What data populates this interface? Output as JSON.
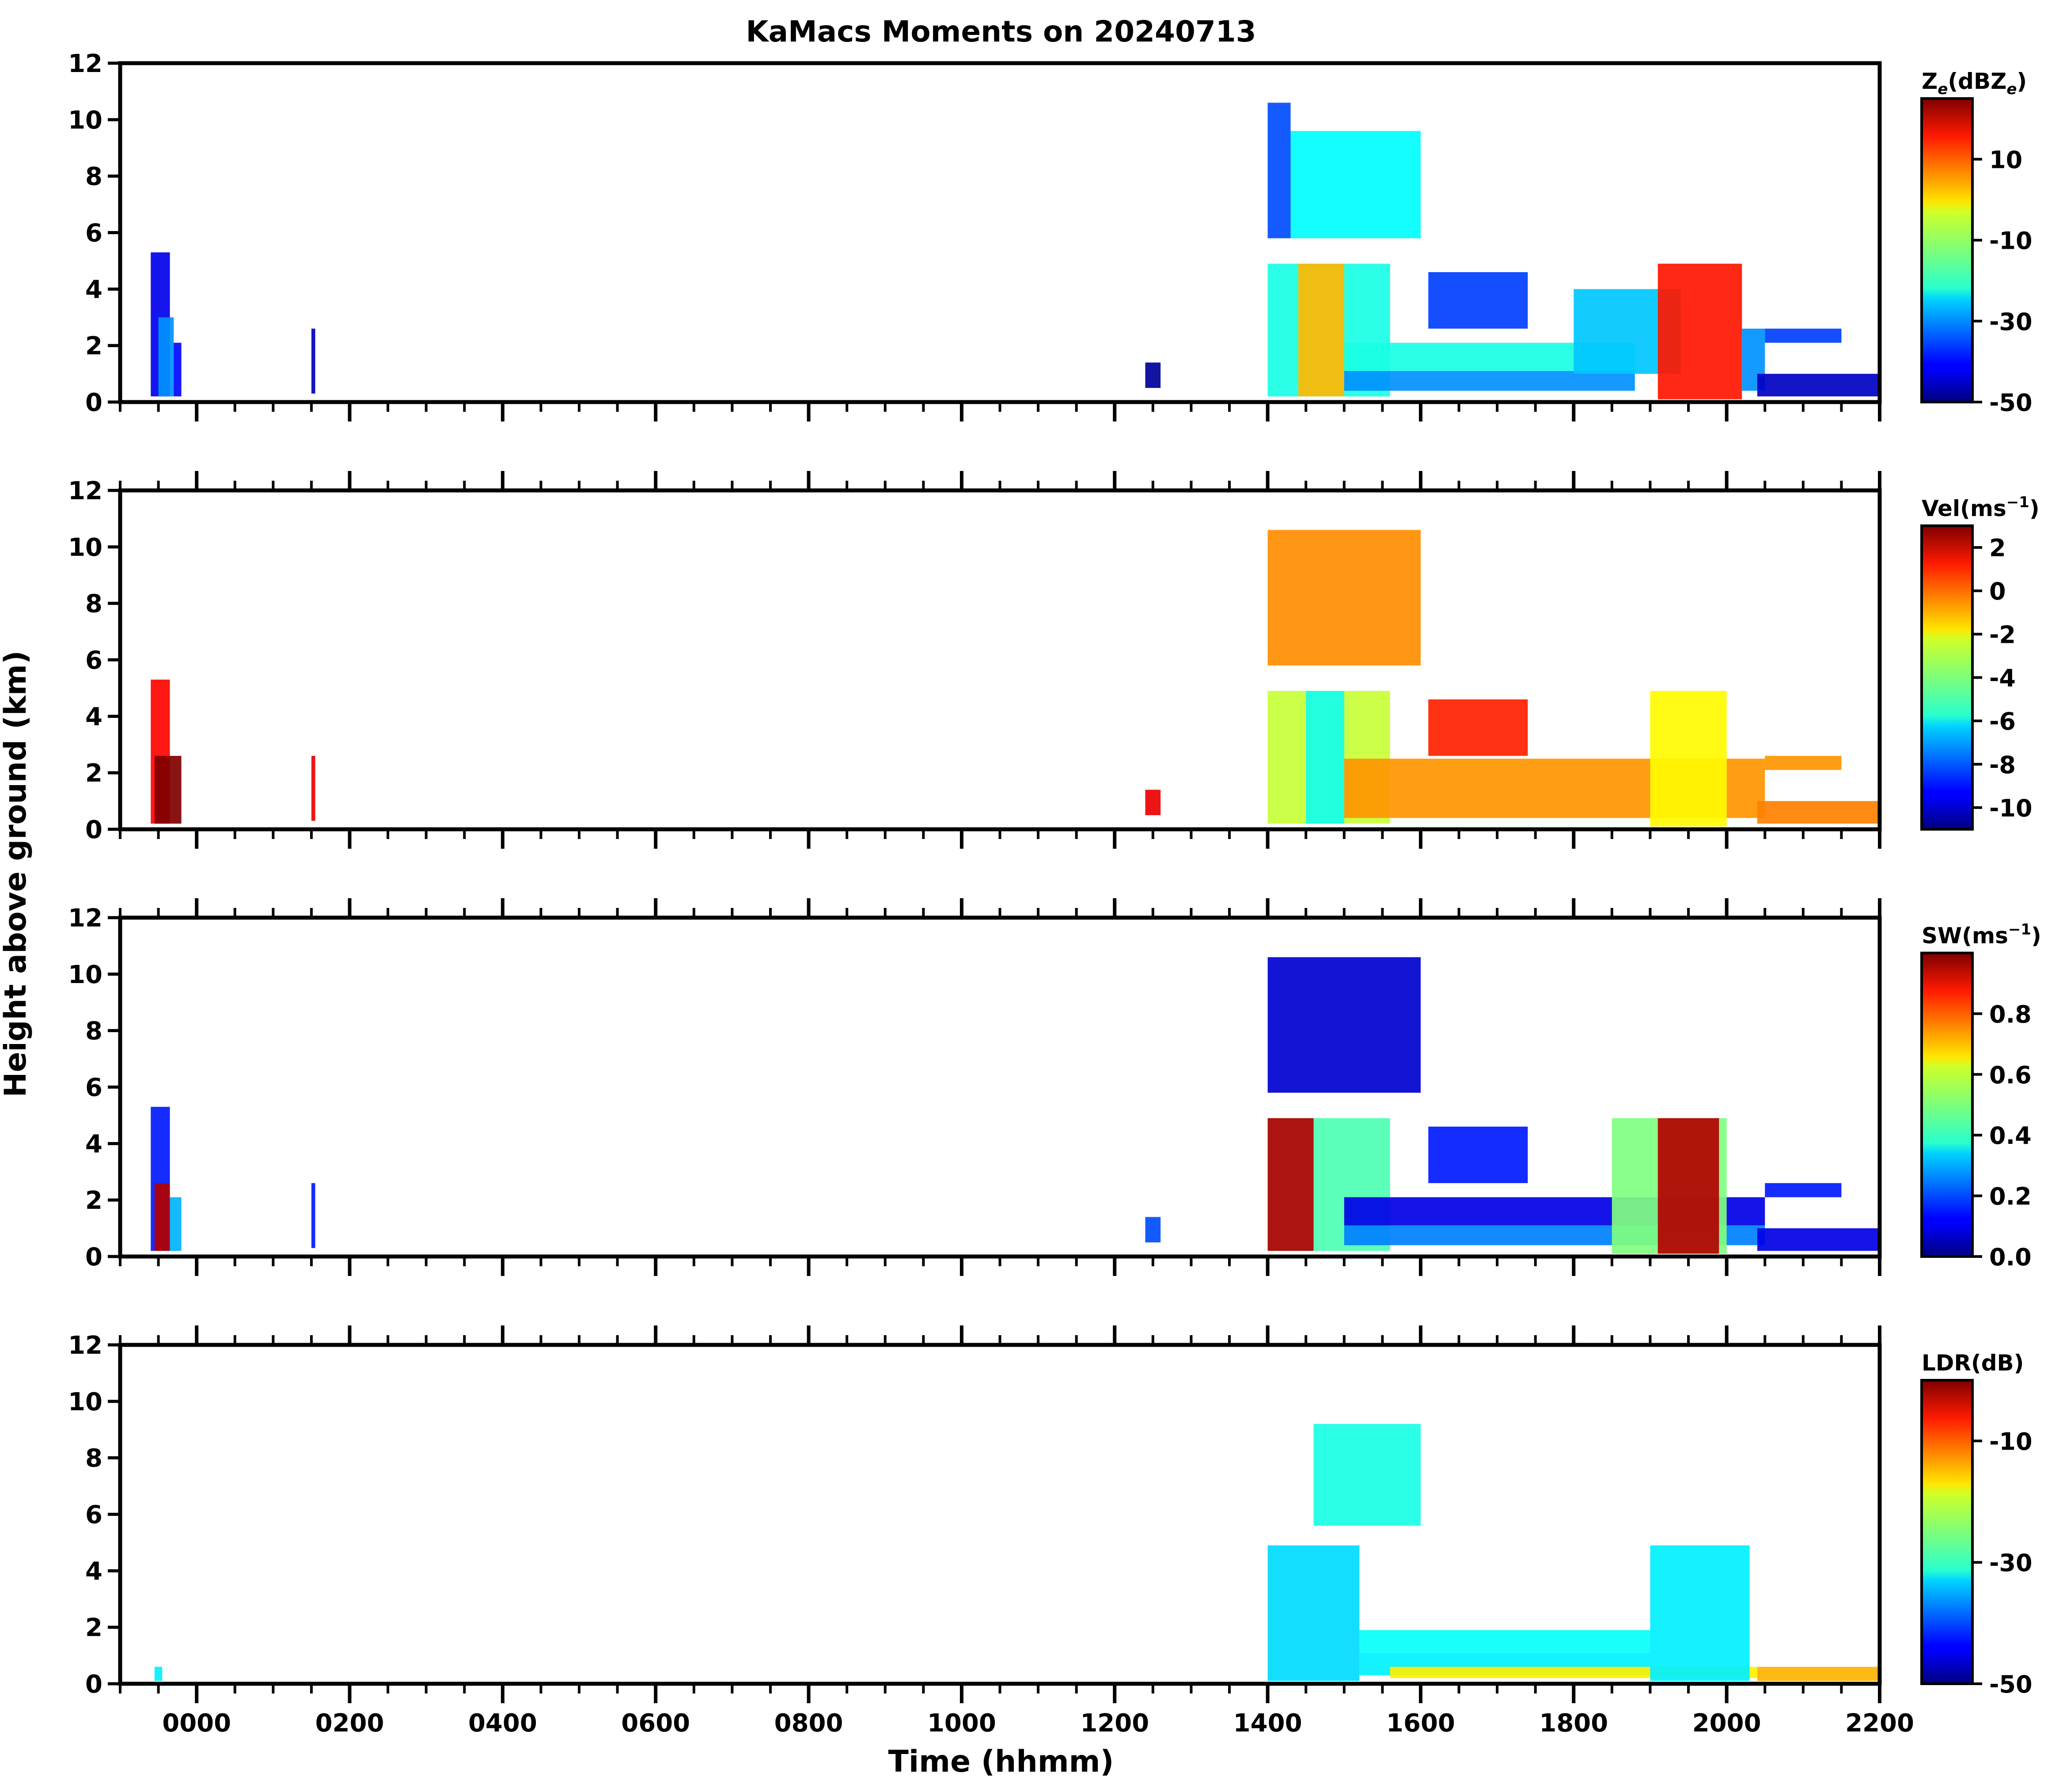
{
  "figure": {
    "title": "KaMacs Moments on 20240713",
    "ylabel": "Height above ground (km)",
    "xlabel": "Time (hhmm)"
  },
  "chart_data": [
    {
      "type": "heatmap",
      "panel": 1,
      "variable": "Ze",
      "colorbar_label": {
        "main": "Z",
        "sub": "e",
        "rest": "(dBZ",
        "sub2": "e",
        "close": ")"
      },
      "colorbar_range": [
        -50,
        25
      ],
      "colorbar_ticks": [
        "10",
        "-10",
        "-30",
        "-50"
      ],
      "colorbar_tick_values": [
        10,
        -10,
        -30,
        -50
      ],
      "ylim": [
        0,
        12
      ],
      "yticks": [
        "0",
        "2",
        "4",
        "6",
        "8",
        "10",
        "12"
      ],
      "xlim_hours": [
        -1,
        22
      ],
      "xticks": [
        "0000",
        "0200",
        "0400",
        "0600",
        "0800",
        "1000",
        "1200",
        "1400",
        "1600",
        "1800",
        "2000",
        "2200"
      ],
      "colormap": "jet",
      "regions": [
        {
          "t0": -0.6,
          "t1": -0.35,
          "h0": 0.2,
          "h1": 5.3,
          "value": -42
        },
        {
          "t0": -0.5,
          "t1": -0.3,
          "h0": 0.2,
          "h1": 3.0,
          "value": -30
        },
        {
          "t0": -0.3,
          "t1": -0.2,
          "h0": 0.2,
          "h1": 2.1,
          "value": -40
        },
        {
          "t0": 1.5,
          "t1": 1.55,
          "h0": 0.3,
          "h1": 2.6,
          "value": -45
        },
        {
          "t0": 12.4,
          "t1": 12.6,
          "h0": 0.5,
          "h1": 1.4,
          "value": -48
        },
        {
          "t0": 14.0,
          "t1": 14.3,
          "h0": 5.8,
          "h1": 10.6,
          "value": -35
        },
        {
          "t0": 14.3,
          "t1": 16.0,
          "h0": 5.8,
          "h1": 9.6,
          "value": -22
        },
        {
          "t0": 14.0,
          "t1": 15.6,
          "h0": 0.2,
          "h1": 4.9,
          "value": -20
        },
        {
          "t0": 14.4,
          "t1": 15.0,
          "h0": 0.2,
          "h1": 4.9,
          "value": 2
        },
        {
          "t0": 15.0,
          "t1": 18.8,
          "h0": 1.1,
          "h1": 2.1,
          "value": -20
        },
        {
          "t0": 15.0,
          "t1": 18.8,
          "h0": 0.4,
          "h1": 1.1,
          "value": -30
        },
        {
          "t0": 16.1,
          "t1": 17.4,
          "h0": 2.6,
          "h1": 4.6,
          "value": -36
        },
        {
          "t0": 18.0,
          "t1": 19.4,
          "h0": 1.0,
          "h1": 4.0,
          "value": -26
        },
        {
          "t0": 19.1,
          "t1": 20.2,
          "h0": 0.1,
          "h1": 4.9,
          "value": 14
        },
        {
          "t0": 20.2,
          "t1": 20.5,
          "h0": 0.4,
          "h1": 2.6,
          "value": -30
        },
        {
          "t0": 20.5,
          "t1": 21.5,
          "h0": 2.1,
          "h1": 2.6,
          "value": -36
        },
        {
          "t0": 20.4,
          "t1": 22.0,
          "h0": 0.2,
          "h1": 1.0,
          "value": -45
        }
      ]
    },
    {
      "type": "heatmap",
      "panel": 2,
      "variable": "Vel",
      "colorbar_label": {
        "main": "Vel(ms",
        "sup": "−1",
        "close": ")"
      },
      "colorbar_range": [
        -11,
        3
      ],
      "colorbar_ticks": [
        "2",
        "0",
        "-2",
        "-4",
        "-6",
        "-8",
        "-10"
      ],
      "colorbar_tick_values": [
        2,
        0,
        -2,
        -4,
        -6,
        -8,
        -10
      ],
      "ylim": [
        0,
        12
      ],
      "yticks": [
        "0",
        "2",
        "4",
        "6",
        "8",
        "10",
        "12"
      ],
      "xlim_hours": [
        -1,
        22
      ],
      "xticks": [
        "0000",
        "0200",
        "0400",
        "0600",
        "0800",
        "1000",
        "1200",
        "1400",
        "1600",
        "1800",
        "2000",
        "2200"
      ],
      "colormap": "jet",
      "regions": [
        {
          "t0": -0.6,
          "t1": -0.35,
          "h0": 0.2,
          "h1": 5.3,
          "value": 1.2
        },
        {
          "t0": -0.55,
          "t1": -0.2,
          "h0": 0.2,
          "h1": 2.6,
          "value": 3.0
        },
        {
          "t0": 1.5,
          "t1": 1.55,
          "h0": 0.3,
          "h1": 2.6,
          "value": 1.5
        },
        {
          "t0": 12.4,
          "t1": 12.6,
          "h0": 0.5,
          "h1": 1.4,
          "value": 1.5
        },
        {
          "t0": 14.0,
          "t1": 16.0,
          "h0": 5.8,
          "h1": 10.6,
          "value": -0.7
        },
        {
          "t0": 14.0,
          "t1": 15.6,
          "h0": 0.2,
          "h1": 4.9,
          "value": -3.0
        },
        {
          "t0": 14.5,
          "t1": 15.0,
          "h0": 0.2,
          "h1": 4.9,
          "value": -5.5
        },
        {
          "t0": 15.0,
          "t1": 20.5,
          "h0": 0.4,
          "h1": 2.5,
          "value": -0.8
        },
        {
          "t0": 16.1,
          "t1": 17.4,
          "h0": 2.6,
          "h1": 4.6,
          "value": 0.8
        },
        {
          "t0": 19.0,
          "t1": 20.0,
          "h0": 0.1,
          "h1": 4.9,
          "value": -2.2
        },
        {
          "t0": 20.5,
          "t1": 21.5,
          "h0": 2.1,
          "h1": 2.6,
          "value": -0.8
        },
        {
          "t0": 20.4,
          "t1": 22.0,
          "h0": 0.2,
          "h1": 1.0,
          "value": -0.5
        }
      ]
    },
    {
      "type": "heatmap",
      "panel": 3,
      "variable": "SW",
      "colorbar_label": {
        "main": "SW(ms",
        "sup": "−1",
        "close": ")"
      },
      "colorbar_range": [
        0,
        1
      ],
      "colorbar_ticks": [
        "0.8",
        "0.6",
        "0.4",
        "0.2",
        "0.0"
      ],
      "colorbar_tick_values": [
        0.8,
        0.6,
        0.4,
        0.2,
        0.0
      ],
      "ylim": [
        0,
        12
      ],
      "yticks": [
        "0",
        "2",
        "4",
        "6",
        "8",
        "10",
        "12"
      ],
      "xlim_hours": [
        -1,
        22
      ],
      "xticks": [
        "0000",
        "0200",
        "0400",
        "0600",
        "0800",
        "1000",
        "1200",
        "1400",
        "1600",
        "1800",
        "2000",
        "2200"
      ],
      "colormap": "jet",
      "regions": [
        {
          "t0": -0.6,
          "t1": -0.35,
          "h0": 0.2,
          "h1": 5.3,
          "value": 0.15
        },
        {
          "t0": -0.55,
          "t1": -0.35,
          "h0": 0.2,
          "h1": 2.6,
          "value": 0.95
        },
        {
          "t0": -0.35,
          "t1": -0.2,
          "h0": 0.2,
          "h1": 2.1,
          "value": 0.3
        },
        {
          "t0": 1.5,
          "t1": 1.55,
          "h0": 0.3,
          "h1": 2.6,
          "value": 0.15
        },
        {
          "t0": 12.4,
          "t1": 12.6,
          "h0": 0.5,
          "h1": 1.4,
          "value": 0.2
        },
        {
          "t0": 14.0,
          "t1": 16.0,
          "h0": 5.8,
          "h1": 10.6,
          "value": 0.08
        },
        {
          "t0": 14.0,
          "t1": 15.6,
          "h0": 0.2,
          "h1": 4.9,
          "value": 0.45
        },
        {
          "t0": 14.0,
          "t1": 14.6,
          "h0": 0.2,
          "h1": 4.9,
          "value": 0.95
        },
        {
          "t0": 15.0,
          "t1": 20.5,
          "h0": 1.1,
          "h1": 2.1,
          "value": 0.1
        },
        {
          "t0": 15.0,
          "t1": 20.5,
          "h0": 0.4,
          "h1": 1.1,
          "value": 0.25
        },
        {
          "t0": 16.1,
          "t1": 17.4,
          "h0": 2.6,
          "h1": 4.6,
          "value": 0.15
        },
        {
          "t0": 18.5,
          "t1": 20.0,
          "h0": 0.1,
          "h1": 4.9,
          "value": 0.5
        },
        {
          "t0": 19.1,
          "t1": 19.9,
          "h0": 0.1,
          "h1": 4.9,
          "value": 0.95
        },
        {
          "t0": 20.5,
          "t1": 21.5,
          "h0": 2.1,
          "h1": 2.6,
          "value": 0.15
        },
        {
          "t0": 20.4,
          "t1": 22.0,
          "h0": 0.2,
          "h1": 1.0,
          "value": 0.1
        }
      ]
    },
    {
      "type": "heatmap",
      "panel": 4,
      "variable": "LDR",
      "colorbar_label": {
        "main": "LDR(dB)"
      },
      "colorbar_range": [
        -50,
        0
      ],
      "colorbar_ticks": [
        "-10",
        "-30",
        "-50"
      ],
      "colorbar_tick_values": [
        -10,
        -30,
        -50
      ],
      "ylim": [
        0,
        12
      ],
      "yticks": [
        "0",
        "2",
        "4",
        "6",
        "8",
        "10",
        "12"
      ],
      "xlim_hours": [
        -1,
        22
      ],
      "xticks": [
        "0000",
        "0200",
        "0400",
        "0600",
        "0800",
        "1000",
        "1200",
        "1400",
        "1600",
        "1800",
        "2000",
        "2200"
      ],
      "colormap": "jet",
      "regions": [
        {
          "t0": -0.55,
          "t1": -0.45,
          "h0": 0.1,
          "h1": 0.6,
          "value": -32
        },
        {
          "t0": 14.6,
          "t1": 16.0,
          "h0": 5.6,
          "h1": 9.2,
          "value": -30
        },
        {
          "t0": 14.0,
          "t1": 15.2,
          "h0": 0.1,
          "h1": 4.9,
          "value": -33
        },
        {
          "t0": 15.2,
          "t1": 19.0,
          "h0": 1.1,
          "h1": 1.9,
          "value": -31
        },
        {
          "t0": 15.2,
          "t1": 19.0,
          "h0": 0.3,
          "h1": 1.1,
          "value": -32
        },
        {
          "t0": 15.6,
          "t1": 20.4,
          "h0": 0.2,
          "h1": 0.6,
          "value": -18
        },
        {
          "t0": 19.0,
          "t1": 20.3,
          "h0": 0.1,
          "h1": 4.9,
          "value": -32
        },
        {
          "t0": 20.4,
          "t1": 22.0,
          "h0": 0.1,
          "h1": 0.6,
          "value": -15
        }
      ]
    }
  ]
}
